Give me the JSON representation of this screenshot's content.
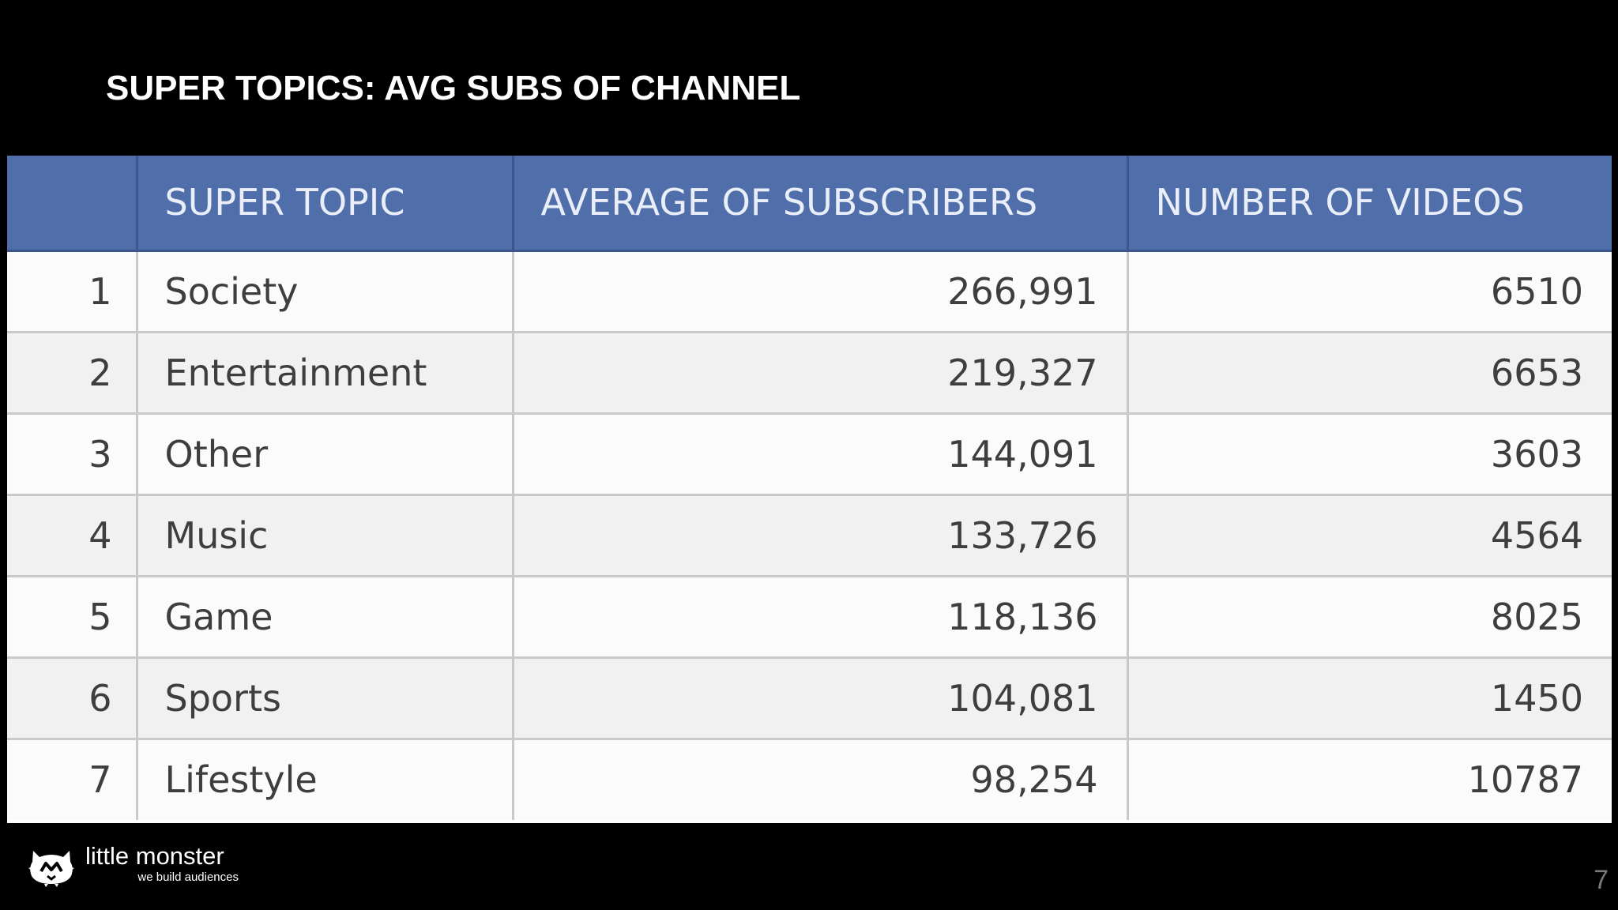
{
  "slide": {
    "title": "SUPER TOPICS: AVG SUBS OF CHANNEL",
    "page_number": "7"
  },
  "table": {
    "headers": [
      "",
      "SUPER TOPIC",
      "AVERAGE OF SUBSCRIBERS",
      "NUMBER OF VIDEOS"
    ],
    "rows": [
      {
        "rank": "1",
        "topic": "Society",
        "avg_subscribers": "266,991",
        "videos": "6510"
      },
      {
        "rank": "2",
        "topic": "Entertainment",
        "avg_subscribers": "219,327",
        "videos": "6653"
      },
      {
        "rank": "3",
        "topic": "Other",
        "avg_subscribers": "144,091",
        "videos": "3603"
      },
      {
        "rank": "4",
        "topic": "Music",
        "avg_subscribers": "133,726",
        "videos": "4564"
      },
      {
        "rank": "5",
        "topic": "Game",
        "avg_subscribers": "118,136",
        "videos": "8025"
      },
      {
        "rank": "6",
        "topic": "Sports",
        "avg_subscribers": "104,081",
        "videos": "1450"
      },
      {
        "rank": "7",
        "topic": "Lifestyle",
        "avg_subscribers": "98,254",
        "videos": "10787"
      }
    ]
  },
  "branding": {
    "name": "little monster",
    "tagline": "we build audiences",
    "icon": "monster-logo-icon"
  },
  "colors": {
    "background": "#000000",
    "header": "#4f6eaa",
    "row_light": "#fbfbfb",
    "row_alt": "#f1f1f1"
  }
}
